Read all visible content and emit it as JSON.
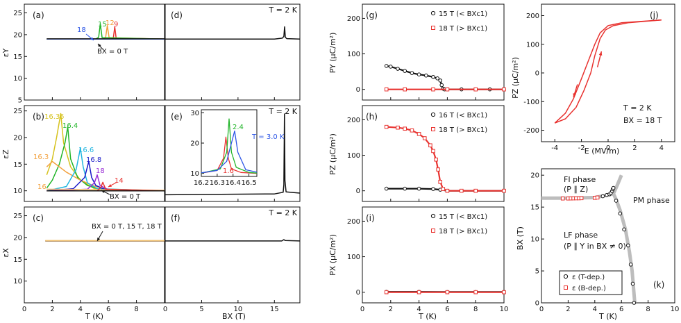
{
  "figure": {
    "left_group": {
      "panels": [
        "(a)",
        "(b)",
        "(c)",
        "(d)",
        "(e)",
        "(f)"
      ],
      "row_ylabels": [
        "εY",
        "εZ",
        "εX"
      ],
      "xlabel_T": "T (K)",
      "xlabel_B": "BX (T)",
      "right_titles": [
        "T = 2 K",
        "T = 2 K",
        "T = 2 K"
      ],
      "a_labels": [
        "18",
        "15",
        "12",
        "9"
      ],
      "a_bx0": "BX = 0 T",
      "b_labels": [
        "16.35",
        "16.4",
        "16.3",
        "16.6",
        "16.8",
        "18",
        "16",
        "14"
      ],
      "b_bx0": "BX = 0 T",
      "c_note": "BX = 0 T, 15 T, 18 T",
      "e_labels": [
        "1.6",
        "2.4",
        "T = 3.0 K"
      ]
    },
    "mid_group": {
      "panels": [
        "(g)",
        "(h)",
        "(i)"
      ],
      "ylabels": [
        "PY (μC/m²)",
        "PZ (μC/m²)",
        "PX (μC/m²)"
      ],
      "xlabel": "T (K)",
      "legend_g": [
        "15 T  (< BXc1)",
        "18 T  (> BXc1)"
      ],
      "legend_h": [
        "16 T  (< BXc1)",
        "18 T  (> BXc1)"
      ],
      "legend_i": [
        "15 T  (< BXc1)",
        "18 T  (> BXc1)"
      ]
    },
    "j": {
      "panel": "(j)",
      "ylabel": "PZ (μC/m²)",
      "xlabel": "E (MV/m)",
      "notes": [
        "T = 2 K",
        "BX = 18 T"
      ]
    },
    "k": {
      "panel": "(k)",
      "ylabel": "BX (T)",
      "xlabel": "T (K)",
      "fi": "FI phase",
      "fi2": "(P ∥ Z)",
      "pm": "PM phase",
      "lf": "LF phase",
      "lf2": "(P ∥ Y in BX ≠ 0)",
      "leg1": "ε (T-dep.)",
      "leg2": "ε (B-dep.)"
    }
  },
  "colors": {
    "red": "#e8322f",
    "blue": "#2b55e6",
    "green": "#22b52a",
    "orange": "#f2a03d",
    "black": "#111111",
    "yellow": "#d6c21e",
    "cyan": "#21b5e0",
    "navy": "#1a1ac8",
    "purple": "#9a2fd6",
    "pale_orange": "#f0c070",
    "gray": "#bdbdbd"
  },
  "chart_data": [
    {
      "id": "a",
      "type": "line",
      "xlim": [
        0,
        10
      ],
      "ylim": [
        5,
        27
      ],
      "yticks": [
        5,
        10,
        15,
        20,
        25
      ],
      "xticks": [
        0,
        2,
        4,
        6,
        8
      ],
      "series": [
        {
          "name": "9 T",
          "color": "#e8322f",
          "x": [
            1.6,
            6.2,
            6.35,
            6.45,
            6.55,
            10
          ],
          "y": [
            19,
            19,
            19.3,
            21.8,
            19.2,
            19
          ]
        },
        {
          "name": "12 T",
          "color": "#f2a03d",
          "x": [
            1.6,
            5.6,
            5.8,
            5.92,
            6.05,
            10
          ],
          "y": [
            19,
            19,
            19.4,
            22.1,
            19.3,
            19
          ]
        },
        {
          "name": "15 T",
          "color": "#22b52a",
          "x": [
            1.6,
            5.1,
            5.3,
            5.42,
            5.55,
            10
          ],
          "y": [
            19,
            19,
            19.4,
            22.5,
            19.3,
            19
          ]
        },
        {
          "name": "18 T",
          "color": "#2b55e6",
          "x": [
            1.6,
            10
          ],
          "y": [
            19,
            19
          ]
        },
        {
          "name": "0 T",
          "color": "#111111",
          "x": [
            1.6,
            10
          ],
          "y": [
            19.05,
            19.05
          ]
        }
      ]
    },
    {
      "id": "b",
      "type": "line",
      "xlim": [
        0,
        10
      ],
      "ylim": [
        8,
        26
      ],
      "yticks": [
        10,
        15,
        20,
        25
      ],
      "xticks": [
        0,
        2,
        4,
        6,
        8
      ],
      "series": [
        {
          "name": "16.35 T",
          "color": "#d6c21e",
          "x": [
            1.6,
            2.0,
            2.3,
            2.5,
            2.6,
            2.8,
            3.3,
            4.0,
            5.0,
            10
          ],
          "y": [
            13,
            16,
            20,
            23,
            24.5,
            19,
            14.5,
            12,
            10.4,
            10
          ]
        },
        {
          "name": "16.4 T",
          "color": "#22b52a",
          "x": [
            1.6,
            2.0,
            2.5,
            2.9,
            3.1,
            3.3,
            3.8,
            4.5,
            5.5,
            10
          ],
          "y": [
            10.5,
            12,
            15,
            19,
            22,
            16,
            12.5,
            11,
            10.2,
            10
          ]
        },
        {
          "name": "16.3 T",
          "color": "#f2a03d",
          "x": [
            1.6,
            2.0,
            3.0,
            4.0,
            5.0,
            6.0,
            10
          ],
          "y": [
            14.5,
            15.5,
            13.5,
            12,
            10.9,
            10.2,
            10
          ]
        },
        {
          "name": "16.6 T",
          "color": "#21b5e0",
          "x": [
            1.6,
            3.0,
            3.7,
            4.0,
            4.2,
            4.5,
            5.2,
            10
          ],
          "y": [
            10,
            10.8,
            14,
            18,
            14.5,
            11.5,
            10.4,
            10
          ]
        },
        {
          "name": "16.8 T",
          "color": "#1a1ac8",
          "x": [
            1.6,
            3.5,
            4.3,
            4.6,
            4.8,
            5.1,
            5.8,
            10
          ],
          "y": [
            10,
            10.4,
            12.5,
            15.5,
            12.5,
            11,
            10.2,
            10
          ]
        },
        {
          "name": "18 T",
          "color": "#9a2fd6",
          "x": [
            1.6,
            4.5,
            5.0,
            5.2,
            5.4,
            6.0,
            10
          ],
          "y": [
            10,
            10.3,
            11.5,
            13,
            11,
            10.2,
            10
          ]
        },
        {
          "name": "16 T",
          "color": "#f0c070",
          "x": [
            1.6,
            10
          ],
          "y": [
            10.3,
            10.1
          ]
        },
        {
          "name": "14 T",
          "color": "#e8322f",
          "x": [
            1.6,
            5.2,
            5.45,
            5.6,
            5.8,
            10
          ],
          "y": [
            10,
            10,
            10.6,
            11.6,
            10.3,
            10
          ]
        },
        {
          "name": "0 T",
          "color": "#111111",
          "x": [
            1.6,
            10
          ],
          "y": [
            10,
            10
          ]
        }
      ]
    },
    {
      "id": "c",
      "type": "line",
      "xlim": [
        0,
        10
      ],
      "ylim": [
        5,
        27
      ],
      "yticks": [
        10,
        15,
        20,
        25
      ],
      "xticks": [
        0,
        2,
        4,
        6,
        8
      ],
      "series": [
        {
          "name": "0 T",
          "color": "#111111",
          "x": [
            1.5,
            10
          ],
          "y": [
            19.2,
            19.2
          ]
        },
        {
          "name": "15 T",
          "color": "#f2a03d",
          "x": [
            1.5,
            10
          ],
          "y": [
            19.25,
            19.25
          ]
        },
        {
          "name": "18 T",
          "color": "#f0c070",
          "x": [
            1.5,
            10
          ],
          "y": [
            19.3,
            19.3
          ]
        }
      ]
    },
    {
      "id": "d",
      "type": "line",
      "xlim": [
        0,
        18.5
      ],
      "ylim": [
        5,
        27
      ],
      "xticks": [
        0,
        5,
        10,
        15
      ],
      "series": [
        {
          "name": "T = 2 K",
          "color": "#111111",
          "x": [
            0,
            15,
            16.1,
            16.3,
            16.4,
            16.5,
            16.7,
            18.5
          ],
          "y": [
            19,
            19,
            19.2,
            19.6,
            21.8,
            19.4,
            19.1,
            19
          ]
        }
      ]
    },
    {
      "id": "e",
      "type": "line",
      "xlim": [
        0,
        18.5
      ],
      "ylim": [
        8,
        31
      ],
      "xticks": [
        0,
        5,
        10,
        15
      ],
      "series": [
        {
          "name": "T = 2 K",
          "color": "#111111",
          "x": [
            0,
            15,
            16.2,
            16.3,
            16.38,
            16.45,
            16.6,
            18.5
          ],
          "y": [
            9.6,
            9.8,
            10.2,
            12,
            29,
            13,
            10.3,
            10
          ]
        }
      ]
    },
    {
      "id": "e_inset",
      "type": "line",
      "xlim": [
        16.2,
        16.55
      ],
      "ylim": [
        9,
        31
      ],
      "xticks": [
        16.2,
        16.3,
        16.4,
        16.5
      ],
      "yticks": [
        10,
        20,
        30
      ],
      "series": [
        {
          "name": "1.6 K",
          "color": "#e8322f",
          "x": [
            16.2,
            16.3,
            16.34,
            16.355,
            16.37,
            16.39,
            16.45,
            16.55
          ],
          "y": [
            10.1,
            11,
            15,
            22,
            15,
            11.5,
            10.3,
            10
          ]
        },
        {
          "name": "2.4 K",
          "color": "#22b52a",
          "x": [
            16.2,
            16.32,
            16.36,
            16.375,
            16.39,
            16.42,
            16.5,
            16.55
          ],
          "y": [
            10.1,
            11.5,
            17,
            28,
            17,
            12,
            10.3,
            10.1
          ]
        },
        {
          "name": "3.0 K",
          "color": "#2b55e6",
          "x": [
            16.2,
            16.3,
            16.36,
            16.39,
            16.41,
            16.43,
            16.48,
            16.55
          ],
          "y": [
            10.2,
            11,
            14,
            20,
            24,
            17,
            11.2,
            10.4
          ]
        }
      ]
    },
    {
      "id": "f",
      "type": "line",
      "xlim": [
        0,
        18.5
      ],
      "ylim": [
        5,
        27
      ],
      "xticks": [
        0,
        5,
        10,
        15
      ],
      "series": [
        {
          "name": "T = 2 K",
          "color": "#111111",
          "x": [
            0,
            16,
            16.3,
            16.5,
            18.5
          ],
          "y": [
            19.2,
            19.2,
            19.5,
            19.3,
            19.2
          ]
        }
      ]
    },
    {
      "id": "g",
      "type": "scatter",
      "xlim": [
        0,
        10
      ],
      "ylim": [
        -30,
        240
      ],
      "yticks": [
        0,
        100,
        200
      ],
      "xticks": [
        0,
        2,
        4,
        6,
        8,
        10
      ],
      "series": [
        {
          "name": "15 T",
          "color": "#111111",
          "marker": "circle",
          "x": [
            1.7,
            2.0,
            2.5,
            3.0,
            3.5,
            4.0,
            4.5,
            5.0,
            5.3,
            5.5,
            5.6,
            5.7,
            5.8,
            6.0,
            7.0,
            8.0,
            9.0,
            10.0
          ],
          "y": [
            66,
            64,
            58,
            52,
            46,
            42,
            39,
            35,
            31,
            25,
            12,
            2,
            0,
            0,
            0,
            0,
            0,
            0
          ]
        },
        {
          "name": "18 T",
          "color": "#e8322f",
          "marker": "square",
          "x": [
            1.7,
            3.0,
            5.0,
            6.0,
            8.0,
            10.0
          ],
          "y": [
            0,
            0,
            0,
            0,
            0,
            0
          ]
        }
      ]
    },
    {
      "id": "h",
      "type": "scatter",
      "xlim": [
        0,
        10
      ],
      "ylim": [
        -30,
        240
      ],
      "yticks": [
        0,
        100,
        200
      ],
      "xticks": [
        0,
        2,
        4,
        6,
        8,
        10
      ],
      "series": [
        {
          "name": "16 T",
          "color": "#111111",
          "marker": "circle",
          "x": [
            1.7,
            3.0,
            4.0,
            5.0,
            5.5,
            6.0,
            8.0,
            10.0
          ],
          "y": [
            6,
            6,
            6,
            5,
            3,
            0,
            0,
            0
          ]
        },
        {
          "name": "18 T",
          "color": "#e8322f",
          "marker": "square",
          "x": [
            1.7,
            2.5,
            3.0,
            3.5,
            4.0,
            4.4,
            4.8,
            5.0,
            5.2,
            5.35,
            5.5,
            5.7,
            6.0,
            7.0,
            8.0,
            10.0
          ],
          "y": [
            180,
            178,
            175,
            170,
            160,
            148,
            128,
            112,
            88,
            60,
            25,
            5,
            0,
            0,
            0,
            0
          ]
        }
      ]
    },
    {
      "id": "i",
      "type": "scatter",
      "xlim": [
        0,
        10
      ],
      "ylim": [
        -30,
        240
      ],
      "yticks": [
        0,
        100,
        200
      ],
      "xticks": [
        0,
        2,
        4,
        6,
        8,
        10
      ],
      "series": [
        {
          "name": "15 T",
          "color": "#111111",
          "marker": "circle",
          "x": [
            1.7,
            4.0,
            6.0,
            8.0,
            10.0
          ],
          "y": [
            1,
            1,
            0.5,
            0.5,
            0.5
          ]
        },
        {
          "name": "18 T",
          "color": "#e8322f",
          "marker": "square",
          "x": [
            1.7,
            4.0,
            6.0,
            8.0,
            10.0
          ],
          "y": [
            0,
            0,
            0,
            0,
            0
          ]
        }
      ]
    },
    {
      "id": "j",
      "type": "line",
      "xlim": [
        -5,
        5
      ],
      "ylim": [
        -240,
        240
      ],
      "xticks": [
        -4,
        -2,
        0,
        2,
        4
      ],
      "yticks": [
        -200,
        -100,
        0,
        100,
        200
      ],
      "series": [
        {
          "name": "up",
          "color": "#e8322f",
          "x": [
            -4.0,
            -3.2,
            -2.4,
            -1.8,
            -1.3,
            -1.0,
            -0.6,
            -0.2,
            0.4,
            1.5,
            4.0
          ],
          "y": [
            -175,
            -160,
            -120,
            -60,
            0,
            60,
            120,
            150,
            165,
            175,
            185
          ]
        },
        {
          "name": "down",
          "color": "#e8322f",
          "x": [
            4.0,
            1.0,
            0.0,
            -0.6,
            -1.0,
            -1.5,
            -2.0,
            -2.6,
            -3.2,
            -4.0
          ],
          "y": [
            185,
            175,
            165,
            140,
            100,
            40,
            -20,
            -90,
            -140,
            -175
          ]
        }
      ]
    },
    {
      "id": "k",
      "type": "scatter",
      "xlim": [
        0,
        10
      ],
      "ylim": [
        0,
        21
      ],
      "xticks": [
        0,
        2,
        4,
        6,
        8,
        10
      ],
      "yticks": [
        0,
        5,
        10,
        15,
        20
      ],
      "boundary": {
        "x": [
          0,
          2,
          4,
          5.0,
          5.4,
          5.6,
          5.9,
          6.3,
          6.6,
          6.8,
          6.9,
          7.0
        ],
        "y": [
          16.4,
          16.4,
          16.5,
          16.9,
          17.1,
          16.2,
          14.5,
          11.5,
          8.0,
          5.0,
          2.5,
          0
        ]
      },
      "upper": {
        "x": [
          5.4,
          5.7,
          6.0
        ],
        "y": [
          17.1,
          18.5,
          20.0
        ]
      },
      "series": [
        {
          "name": "ε (T-dep.)",
          "color": "#111111",
          "marker": "circle",
          "x": [
            4.6,
            4.9,
            5.1,
            5.2,
            5.3,
            5.35,
            5.4,
            5.6,
            5.9,
            6.2,
            6.5,
            6.7,
            6.85,
            6.95
          ],
          "y": [
            16.7,
            16.9,
            17.0,
            17.2,
            17.5,
            17.8,
            18.0,
            16.0,
            14.0,
            11.5,
            9.0,
            6.0,
            3.0,
            0.0
          ]
        },
        {
          "name": "ε (B-dep.)",
          "color": "#e8322f",
          "marker": "square",
          "x": [
            1.6,
            2.0,
            2.2,
            2.4,
            2.6,
            2.8,
            3.0,
            4.0,
            4.2
          ],
          "y": [
            16.35,
            16.35,
            16.36,
            16.37,
            16.38,
            16.38,
            16.4,
            16.45,
            16.5
          ]
        }
      ]
    }
  ]
}
